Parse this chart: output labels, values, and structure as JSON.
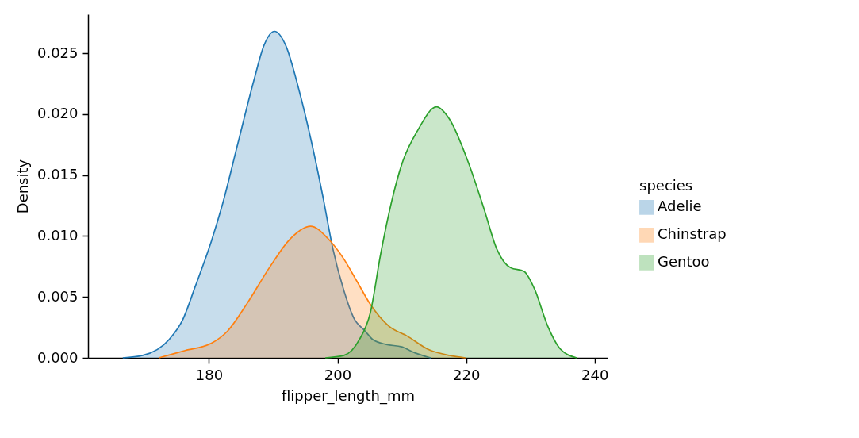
{
  "chart_data": {
    "type": "area",
    "xlabel": "flipper_length_mm",
    "ylabel": "Density",
    "legend_title": "species",
    "legend": "right",
    "grid": false,
    "line_style": "solid",
    "xlim": [
      161.2,
      242
    ],
    "xticks": [
      180,
      200,
      220,
      240
    ],
    "ylim": [
      0,
      0.0282
    ],
    "yticks": [
      {
        "value": 0,
        "label": "0.000"
      },
      0.005,
      {
        "value": 0.01,
        "label": "0.010"
      },
      0.015,
      {
        "value": 0.02,
        "label": "0.020"
      },
      0.025
    ],
    "series": [
      {
        "name": "Adelie",
        "color": "#1f77b4",
        "x": [
          166.6,
          169.7,
          173.8,
          175.9,
          177.9,
          180.4,
          182.0,
          184.5,
          187.0,
          188.6,
          190.2,
          191.9,
          194.0,
          196.0,
          197.7,
          199.3,
          201.0,
          202.5,
          204.3,
          205.5,
          207.6,
          210.0,
          212.1,
          214.5
        ],
        "values": [
          0,
          0.0002,
          0.0015,
          0.0031,
          0.0059,
          0.0096,
          0.0124,
          0.0176,
          0.0228,
          0.0257,
          0.0268,
          0.0257,
          0.022,
          0.0176,
          0.0133,
          0.0089,
          0.0055,
          0.0033,
          0.0022,
          0.0015,
          0.0011,
          0.0009,
          0.0004,
          0
        ]
      },
      {
        "name": "Chinstrap",
        "color": "#ff7f0e",
        "x": [
          172.2,
          176.3,
          180.4,
          182.9,
          186.1,
          189.4,
          192.7,
          195.8,
          198.5,
          201.0,
          203.0,
          205.1,
          208.0,
          210.8,
          214.1,
          217.4,
          219.9
        ],
        "values": [
          0,
          0.0006,
          0.0012,
          0.0022,
          0.0046,
          0.0074,
          0.0098,
          0.0108,
          0.0098,
          0.0081,
          0.0063,
          0.0044,
          0.0026,
          0.0018,
          0.0007,
          0.0002,
          0
        ]
      },
      {
        "name": "Gentoo",
        "color": "#2ca02c",
        "x": [
          198.1,
          201.0,
          203.4,
          205.1,
          206.7,
          208.4,
          210.0,
          212.5,
          215.4,
          217.4,
          220.3,
          222.8,
          224.8,
          226.9,
          229.0,
          230.6,
          232.7,
          234.7,
          237.2
        ],
        "values": [
          0,
          0.0002,
          0.0015,
          0.0037,
          0.0085,
          0.0128,
          0.0159,
          0.0187,
          0.0206,
          0.0196,
          0.0161,
          0.0122,
          0.0089,
          0.0074,
          0.0071,
          0.0057,
          0.0026,
          0.0007,
          0
        ]
      }
    ]
  }
}
